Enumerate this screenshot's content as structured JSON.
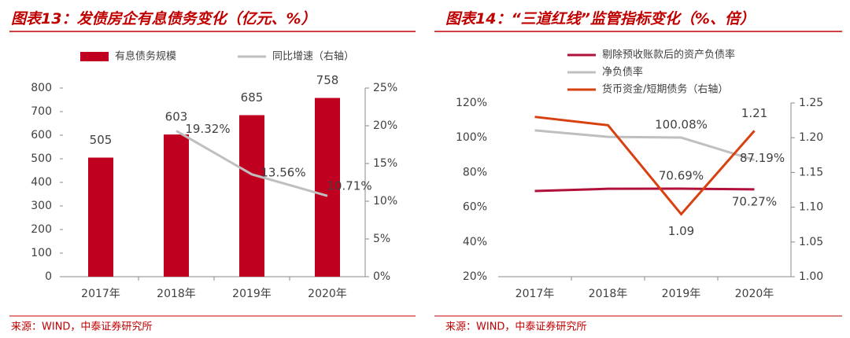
{
  "chart_data": [
    {
      "type": "combo",
      "title": "图表13：发债房企有息债务变化（亿元、%）",
      "source": "来源：WIND，中泰证券研究所",
      "categories": [
        "2017年",
        "2018年",
        "2019年",
        "2020年"
      ],
      "series": [
        {
          "name": "有息债务规模",
          "type": "bar",
          "color": "#c0001f",
          "values": [
            505,
            603,
            685,
            758
          ]
        },
        {
          "name": "同比增速（右轴）",
          "type": "line",
          "axis": "y2",
          "color": "#bfbfbf",
          "values": [
            null,
            19.32,
            13.56,
            10.71
          ],
          "value_labels": [
            null,
            "19.32%",
            "13.56%",
            "10.71%"
          ]
        }
      ],
      "ylim": [
        0,
        800
      ],
      "yticks": [
        0,
        100,
        200,
        300,
        400,
        500,
        600,
        700,
        800
      ],
      "y2lim": [
        0,
        25
      ],
      "y2ticks": [
        {
          "value": 0,
          "label": "0%"
        },
        {
          "value": 5,
          "label": "5%"
        },
        {
          "value": 10,
          "label": "10%"
        },
        {
          "value": 15,
          "label": "15%"
        },
        {
          "value": 20,
          "label": "20%"
        },
        {
          "value": 25,
          "label": "25%"
        }
      ],
      "legend": "top",
      "grid": false
    },
    {
      "type": "line",
      "title": "图表14：“三道红线”监管指标变化（%、倍）",
      "source": "来源：WIND，中泰证券研究所",
      "categories": [
        "2017年",
        "2018年",
        "2019年",
        "2020年"
      ],
      "series": [
        {
          "name": "剔除预收账款后的资产负债率",
          "color": "#b0103a",
          "values": [
            69.3,
            70.6,
            70.69,
            70.27
          ],
          "value_labels": [
            null,
            null,
            "70.69%",
            "70.27%"
          ]
        },
        {
          "name": "净负债率",
          "color": "#bfbfbf",
          "values": [
            104.2,
            100.5,
            100.08,
            87.19
          ],
          "value_labels": [
            null,
            null,
            "100.08%",
            "87.19%"
          ]
        },
        {
          "name": "货币资金/短期债务（右轴）",
          "axis": "y2",
          "color": "#d9400f",
          "values": [
            1.23,
            1.218,
            1.09,
            1.21
          ],
          "value_labels": [
            null,
            null,
            "1.09",
            "1.21"
          ]
        }
      ],
      "ylim": [
        20,
        120
      ],
      "yticks": [
        {
          "value": 20,
          "label": "20%"
        },
        {
          "value": 40,
          "label": "40%"
        },
        {
          "value": 60,
          "label": "60%"
        },
        {
          "value": 80,
          "label": "80%"
        },
        {
          "value": 100,
          "label": "100%"
        },
        {
          "value": 120,
          "label": "120%"
        }
      ],
      "y2lim": [
        1.0,
        1.25
      ],
      "y2ticks": [
        {
          "value": 1.0,
          "label": "1.00"
        },
        1.05,
        {
          "value": 1.1,
          "label": "1.10"
        },
        1.15,
        {
          "value": 1.2,
          "label": "1.20"
        },
        1.25
      ],
      "legend": "top-left",
      "grid": false
    }
  ]
}
